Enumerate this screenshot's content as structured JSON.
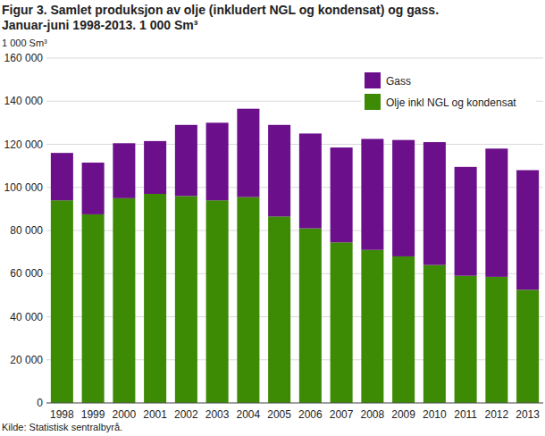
{
  "chart_data": {
    "type": "bar",
    "title": "Figur 3. Samlet produksjon av olje (inkludert NGL og kondensat) og gass.",
    "subtitle": "Januar-juni 1998-2013. 1 000 Sm³",
    "y_label": "1 000 Sm³",
    "source": "Kilde: Statistisk sentralbyrå.",
    "categories": [
      "1998",
      "1999",
      "2000",
      "2001",
      "2002",
      "2003",
      "2004",
      "2005",
      "2006",
      "2007",
      "2008",
      "2009",
      "2010",
      "2011",
      "2012",
      "2013"
    ],
    "series": [
      {
        "name": "Olje inkl NGL og kondensat",
        "color": "#3d8a05",
        "values": [
          94000,
          87500,
          95000,
          97000,
          96000,
          94000,
          95500,
          86500,
          81000,
          74500,
          71000,
          68000,
          64000,
          59000,
          58500,
          52500
        ]
      },
      {
        "name": "Gass",
        "color": "#6b0f8b",
        "values": [
          22000,
          24000,
          25500,
          24500,
          33000,
          36000,
          41000,
          42500,
          44000,
          44000,
          51500,
          54000,
          57000,
          50500,
          59500,
          55500
        ]
      }
    ],
    "stacked": true,
    "ylim": [
      0,
      160000
    ],
    "yticks": [
      0,
      {
        "value": 20000,
        "label": "20 000"
      },
      {
        "value": 40000,
        "label": "40 000"
      },
      {
        "value": 60000,
        "label": "60 000"
      },
      {
        "value": 80000,
        "label": "80 000"
      },
      {
        "value": 100000,
        "label": "100 000"
      },
      {
        "value": 120000,
        "label": "120 000"
      },
      {
        "value": 140000,
        "label": "140 000"
      },
      {
        "value": 160000,
        "label": "160 000"
      }
    ],
    "grid": true,
    "legend": "top-right"
  }
}
